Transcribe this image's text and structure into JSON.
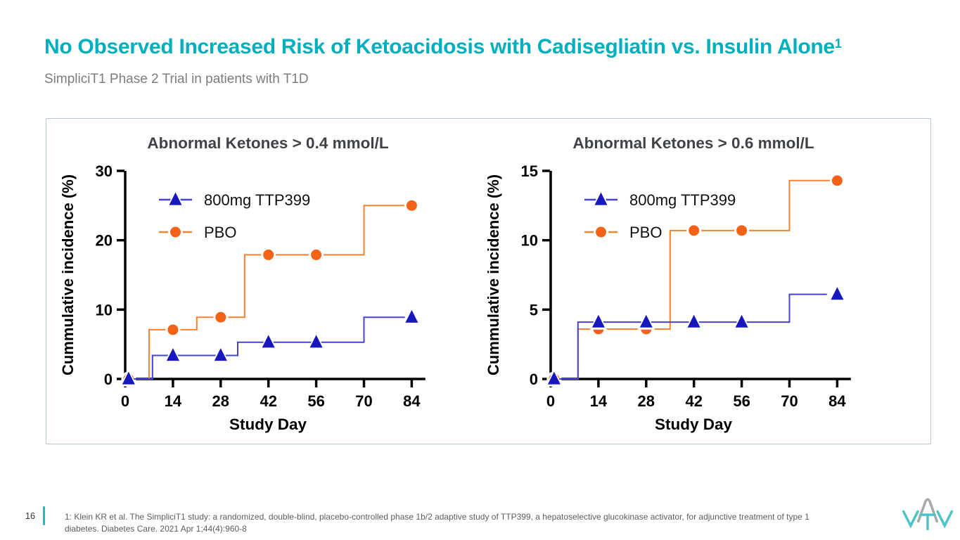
{
  "slide": {
    "title": "No Observed Increased Risk of Ketoacidosis with Cadisegliatin vs. Insulin Alone",
    "title_superscript": "1",
    "subtitle": "SimpliciT1 Phase 2 Trial in patients with T1D",
    "page_number": "16",
    "footnote": "1: Klein KR et al. The SimpliciT1 study: a randomized, double-blind, placebo-controlled phase 1b/2 adaptive study of TTP399, a hepatoselective glucokinase activator, for adjunctive treatment of type 1 diabetes. Diabetes Care. 2021 Apr 1;44(4):960-8",
    "logo_text": "vtv"
  },
  "colors": {
    "title_teal": "#00afbe",
    "accent_bar": "#2db4bf",
    "subtitle_gray": "#7d7d7d",
    "chart_title_gray": "#3f4347",
    "panel_border": "#b9c6da",
    "axis_black": "#000000",
    "ttp399_line": "#4444d4",
    "ttp399_marker": "#1717be",
    "pbo_line": "#f58233",
    "pbo_marker": "#f26318",
    "logo_teal": "#4fc3c8",
    "logo_gray": "#a8a8a8"
  },
  "chart_data": [
    {
      "type": "line",
      "step": true,
      "title": "Abnormal Ketones > 0.4 mmol/L",
      "xlabel": "Study Day",
      "ylabel": "Cummulative incidence (%)",
      "xlim": [
        0,
        88
      ],
      "ylim": [
        0,
        30
      ],
      "xticks": [
        0,
        14,
        28,
        42,
        56,
        70,
        84
      ],
      "yticks": [
        0,
        10,
        20,
        30
      ],
      "grid": false,
      "legend_position": "top-left",
      "series": [
        {
          "name": "800mg TTP399",
          "marker": "triangle",
          "line_color": "#4444d4",
          "marker_color": "#1717be",
          "step_points": [
            [
              0,
              0
            ],
            [
              8,
              0
            ],
            [
              8,
              3.4
            ],
            [
              33,
              3.4
            ],
            [
              33,
              5.3
            ],
            [
              70,
              5.3
            ],
            [
              70,
              8.9
            ],
            [
              82,
              8.9
            ]
          ],
          "marker_points": [
            [
              1,
              0
            ],
            [
              14,
              3.4
            ],
            [
              28,
              3.4
            ],
            [
              42,
              5.3
            ],
            [
              56,
              5.3
            ],
            [
              84,
              8.9
            ]
          ]
        },
        {
          "name": "PBO",
          "marker": "circle",
          "line_color": "#f58233",
          "marker_color": "#f26318",
          "step_points": [
            [
              0,
              0
            ],
            [
              7,
              0
            ],
            [
              7,
              7.1
            ],
            [
              21,
              7.1
            ],
            [
              21,
              8.9
            ],
            [
              35,
              8.9
            ],
            [
              35,
              17.9
            ],
            [
              70,
              17.9
            ],
            [
              70,
              25
            ],
            [
              82,
              25
            ]
          ],
          "marker_points": [
            [
              1,
              0
            ],
            [
              14,
              7.1
            ],
            [
              28,
              8.9
            ],
            [
              42,
              17.9
            ],
            [
              56,
              17.9
            ],
            [
              84,
              25
            ]
          ]
        }
      ]
    },
    {
      "type": "line",
      "step": true,
      "title": "Abnormal Ketones > 0.6 mmol/L",
      "xlabel": "Study Day",
      "ylabel": "Cummulative incidence (%)",
      "xlim": [
        0,
        88
      ],
      "ylim": [
        0,
        15
      ],
      "xticks": [
        0,
        14,
        28,
        42,
        56,
        70,
        84
      ],
      "yticks": [
        0,
        5,
        10,
        15
      ],
      "grid": false,
      "legend_position": "top-left",
      "series": [
        {
          "name": "800mg TTP399",
          "marker": "triangle",
          "line_color": "#4444d4",
          "marker_color": "#1717be",
          "step_points": [
            [
              0,
              0
            ],
            [
              8,
              0
            ],
            [
              8,
              4.1
            ],
            [
              70,
              4.1
            ],
            [
              70,
              6.1
            ],
            [
              81,
              6.1
            ]
          ],
          "marker_points": [
            [
              1,
              0
            ],
            [
              14,
              4.1
            ],
            [
              28,
              4.1
            ],
            [
              42,
              4.1
            ],
            [
              56,
              4.1
            ],
            [
              84,
              6.1
            ]
          ]
        },
        {
          "name": "PBO",
          "marker": "circle",
          "line_color": "#f58233",
          "marker_color": "#f26318",
          "step_points": [
            [
              0,
              0
            ],
            [
              8,
              0
            ],
            [
              8,
              3.6
            ],
            [
              35,
              3.6
            ],
            [
              35,
              10.7
            ],
            [
              70,
              10.7
            ],
            [
              70,
              14.3
            ],
            [
              82,
              14.3
            ]
          ],
          "marker_points": [
            [
              1,
              0
            ],
            [
              14,
              3.6
            ],
            [
              28,
              3.6
            ],
            [
              42,
              10.7
            ],
            [
              56,
              10.7
            ],
            [
              84,
              14.3
            ]
          ]
        }
      ]
    }
  ]
}
